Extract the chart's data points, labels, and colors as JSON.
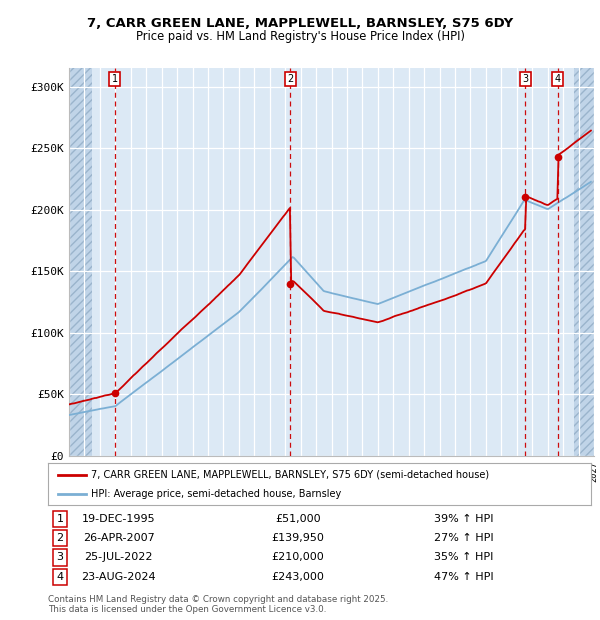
{
  "title1": "7, CARR GREEN LANE, MAPPLEWELL, BARNSLEY, S75 6DY",
  "title2": "Price paid vs. HM Land Registry's House Price Index (HPI)",
  "ylabel_ticks": [
    "£0",
    "£50K",
    "£100K",
    "£150K",
    "£200K",
    "£250K",
    "£300K"
  ],
  "ytick_values": [
    0,
    50000,
    100000,
    150000,
    200000,
    250000,
    300000
  ],
  "ylim": [
    0,
    315000
  ],
  "xlim": [
    1993,
    2027
  ],
  "sales": [
    {
      "num": 1,
      "date": "19-DEC-1995",
      "price": 51000,
      "year": 1995.97,
      "hpi_pct": "39% ↑ HPI"
    },
    {
      "num": 2,
      "date": "26-APR-2007",
      "price": 139950,
      "year": 2007.32,
      "hpi_pct": "27% ↑ HPI"
    },
    {
      "num": 3,
      "date": "25-JUL-2022",
      "price": 210000,
      "year": 2022.56,
      "hpi_pct": "35% ↑ HPI"
    },
    {
      "num": 4,
      "date": "23-AUG-2024",
      "price": 243000,
      "year": 2024.64,
      "hpi_pct": "47% ↑ HPI"
    }
  ],
  "legend_line1": "7, CARR GREEN LANE, MAPPLEWELL, BARNSLEY, S75 6DY (semi-detached house)",
  "legend_line2": "HPI: Average price, semi-detached house, Barnsley",
  "footer1": "Contains HM Land Registry data © Crown copyright and database right 2025.",
  "footer2": "This data is licensed under the Open Government Licence v3.0.",
  "bg_color": "#dce9f5",
  "grid_color": "#ffffff",
  "red_line_color": "#cc0000",
  "blue_line_color": "#7bafd4",
  "sale_marker_color": "#cc0000",
  "dashed_vline_color": "#cc0000",
  "number_box_color": "#cc0000",
  "hatch_left_end": 1994.5,
  "hatch_right_start": 2025.7
}
